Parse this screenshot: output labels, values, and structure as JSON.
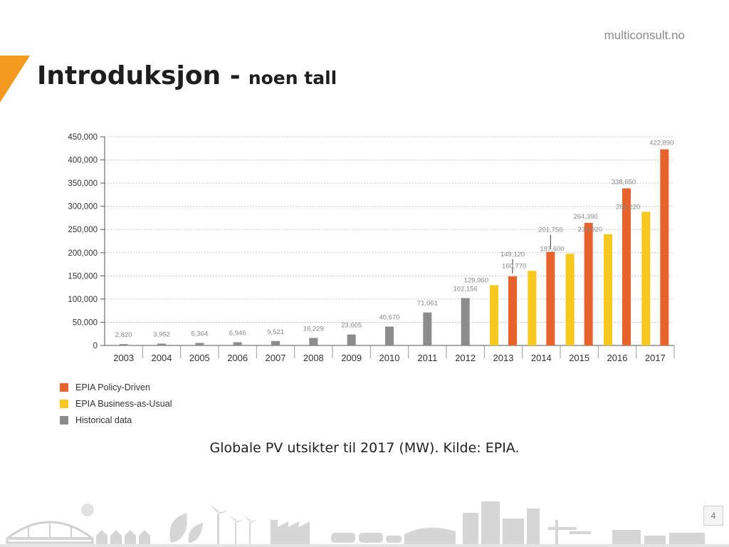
{
  "header": {
    "brand": "multiconsult.no",
    "title_main": "Introduksjon -",
    "title_sub": "noen tall"
  },
  "chart_data": {
    "type": "bar",
    "title": "",
    "xlabel": "",
    "ylabel": "",
    "ylim": [
      0,
      450000
    ],
    "yticks": [
      "0",
      "50,000",
      "100,000",
      "150,000",
      "200,000",
      "250,000",
      "300,000",
      "350,000",
      "400,000",
      "450,000"
    ],
    "grid": "horizontal dotted",
    "legend_position": "bottom-left",
    "colors": {
      "policy": "#e8632b",
      "bau": "#f7c81e",
      "historical": "#8c8c8c"
    },
    "groups": [
      {
        "year": "2003",
        "bars": [
          {
            "series": "historical",
            "value": 2820,
            "label": "2,820"
          }
        ]
      },
      {
        "year": "2004",
        "bars": [
          {
            "series": "historical",
            "value": 3952,
            "label": "3,952"
          }
        ]
      },
      {
        "year": "2005",
        "bars": [
          {
            "series": "historical",
            "value": 5364,
            "label": "5,364"
          }
        ]
      },
      {
        "year": "2006",
        "bars": [
          {
            "series": "historical",
            "value": 6946,
            "label": "6,946"
          }
        ]
      },
      {
        "year": "2007",
        "bars": [
          {
            "series": "historical",
            "value": 9521,
            "label": "9,521"
          }
        ]
      },
      {
        "year": "2008",
        "bars": [
          {
            "series": "historical",
            "value": 16229,
            "label": "16,229"
          }
        ]
      },
      {
        "year": "2009",
        "bars": [
          {
            "series": "historical",
            "value": 23605,
            "label": "23,605"
          }
        ]
      },
      {
        "year": "2010",
        "bars": [
          {
            "series": "historical",
            "value": 40670,
            "label": "40,670"
          }
        ]
      },
      {
        "year": "2011",
        "bars": [
          {
            "series": "historical",
            "value": 71061,
            "label": "71,061"
          }
        ]
      },
      {
        "year": "2012",
        "bars": [
          {
            "series": "historical",
            "value": 102156,
            "label": "102,156"
          }
        ]
      },
      {
        "year": "2013",
        "bars": [
          {
            "series": "bau",
            "value": 129960,
            "label": "129,960"
          },
          {
            "series": "policy",
            "value": 149120,
            "label": "149,120"
          }
        ]
      },
      {
        "year": "2014",
        "bars": [
          {
            "series": "bau",
            "value": 160770,
            "label": "160,770"
          },
          {
            "series": "policy",
            "value": 201750,
            "label": "201,750"
          }
        ]
      },
      {
        "year": "2015",
        "bars": [
          {
            "series": "bau",
            "value": 197600,
            "label": "197,600"
          },
          {
            "series": "policy",
            "value": 264390,
            "label": "264,390"
          }
        ]
      },
      {
        "year": "2016",
        "bars": [
          {
            "series": "bau",
            "value": 239920,
            "label": "239,920"
          },
          {
            "series": "policy",
            "value": 338650,
            "label": "338,650"
          }
        ]
      },
      {
        "year": "2017",
        "bars": [
          {
            "series": "bau",
            "value": 288220,
            "label": "288,220"
          },
          {
            "series": "policy",
            "value": 422890,
            "label": "422,890"
          }
        ]
      }
    ],
    "legend": [
      {
        "series": "policy",
        "name": "EPIA Policy-Driven"
      },
      {
        "series": "bau",
        "name": "EPIA Business-as-Usual"
      },
      {
        "series": "historical",
        "name": "Historical data"
      }
    ]
  },
  "caption": "Globale PV utsikter til 2017 (MW). Kilde: EPIA.",
  "footer": {
    "page_number": "4"
  }
}
